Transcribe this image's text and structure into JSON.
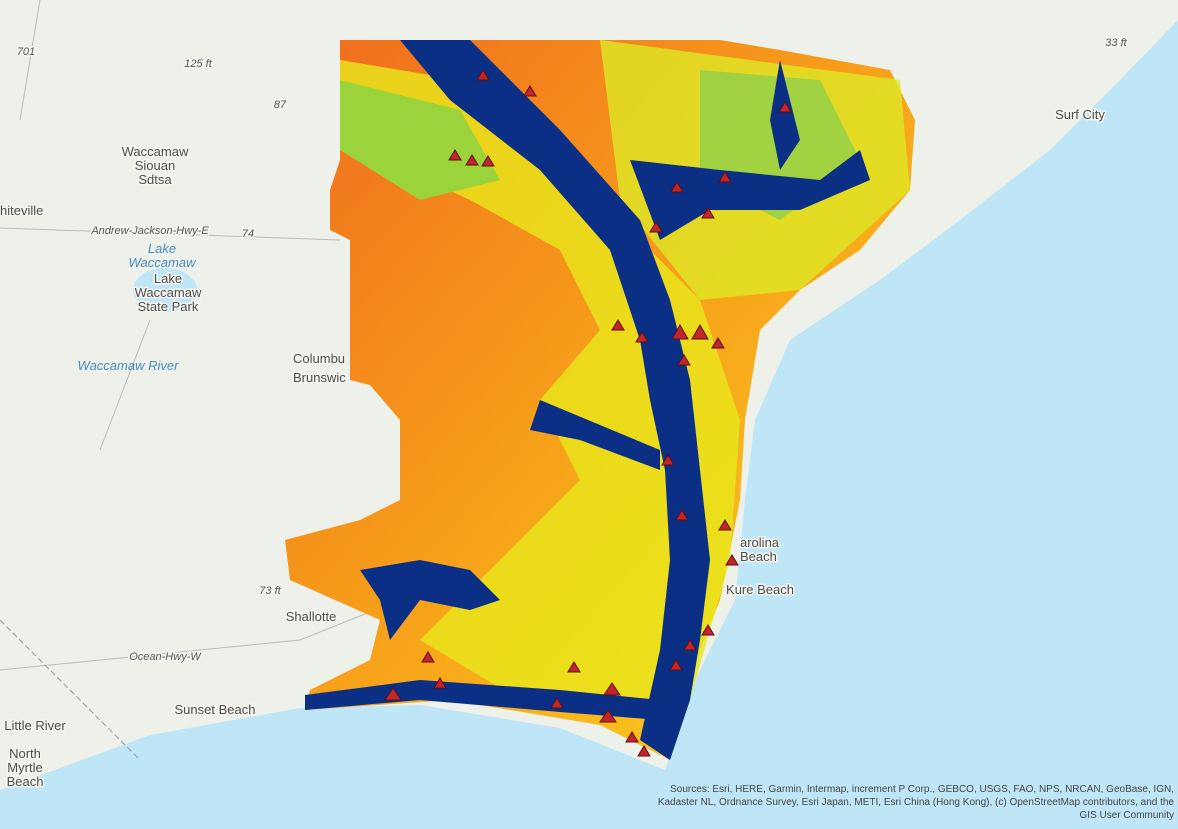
{
  "labels": {
    "elev_125": "125 ft",
    "elev_33": "33 ft",
    "elev_73": "73 ft",
    "surf_city": "Surf City",
    "waccamaw_siouan": [
      "Waccamaw",
      "Siouan",
      "Sdtsa"
    ],
    "whiteville": "hiteville",
    "andrew_jackson": "Andrew-Jackson-Hwy-E",
    "route_74": "74",
    "route_87": "87",
    "route_701": "701",
    "lake_waccamaw": [
      "Lake",
      "Waccamaw"
    ],
    "lake_park": [
      "Lake",
      "Waccamaw",
      "State Park"
    ],
    "waccamaw_river": "Waccamaw River",
    "columbus": "Columbu",
    "brunswick": "Brunswic",
    "carolina_beach": [
      "arolina",
      "Beach"
    ],
    "kure_beach": "Kure Beach",
    "shallotte": "Shallotte",
    "ocean_hwy": "Ocean-Hwy-W",
    "sunset_beach": "Sunset Beach",
    "little_river": "Little River",
    "north_myrtle": [
      "North",
      "Myrtle",
      "Beach"
    ]
  },
  "attribution": [
    "Sources: Esri, HERE, Garmin, Intermap, increment P Corp., GEBCO, USGS, FAO, NPS, NRCAN, GeoBase, IGN,",
    "Kadaster NL, Ordnance Survey, Esri Japan, METI, Esri China (Hong Kong), (c) OpenStreetMap contributors, and the",
    "GIS User Community"
  ]
}
